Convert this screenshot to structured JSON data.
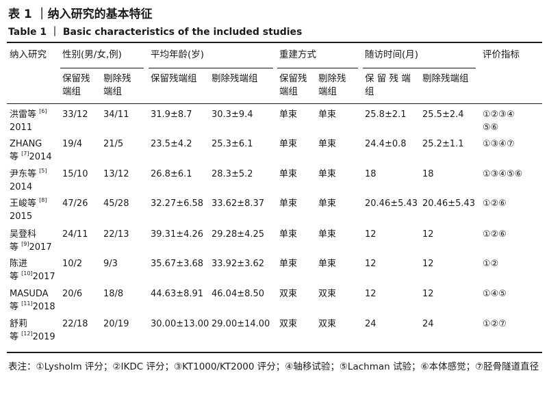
{
  "title_cn": "表 1 ｜纳入研究的基本特征",
  "title_en": "Table 1 ｜ Basic characteristics of the included studies",
  "header": {
    "study": "纳入研究",
    "sex": "性别(男/女,例)",
    "age": "平均年龄(岁)",
    "method": "重建方式",
    "followup": "随访时间(月)",
    "indicators": "评价指标",
    "sub_keep_1": "保留残",
    "sub_keep_2": "端组",
    "sub_remove_1": "剔除残",
    "sub_remove_2": "端组",
    "sub_keep_full": "保留残端组",
    "sub_remove_full": "剔除残端组",
    "sub_fu_keep_1": "保 留 残 端",
    "sub_fu_keep_2": "组",
    "sub_fu_remove_1": "剔除残端组"
  },
  "rows": [
    {
      "study_1": "洪雷等",
      "ref": "[6]",
      "study_2": "2011",
      "sex_keep": "33/12",
      "sex_remove": "34/11",
      "age_keep": "31.9±8.7",
      "age_remove": "30.3±9.4",
      "method_keep": "单束",
      "method_remove": "单束",
      "fu_keep": "25.8±2.1",
      "fu_remove": "25.5±2.4",
      "ind_1": "①②③④",
      "ind_2": "⑤⑥"
    },
    {
      "study_1": "ZHANG",
      "ref": "[7]",
      "study_2": "2014",
      "study_2_prefix": "等",
      "sex_keep": "19/4",
      "sex_remove": "21/5",
      "age_keep": "23.5±4.2",
      "age_remove": "25.3±6.1",
      "method_keep": "单束",
      "method_remove": "单束",
      "fu_keep": "24.4±0.8",
      "fu_remove": "25.2±1.1",
      "ind_1": "①③④⑦",
      "ind_2": ""
    },
    {
      "study_1": "尹东等",
      "ref": "[5]",
      "study_2": "2014",
      "sex_keep": "15/10",
      "sex_remove": "13/12",
      "age_keep": "26.8±6.1",
      "age_remove": "28.3±5.2",
      "method_keep": "单束",
      "method_remove": "单束",
      "fu_keep": "18",
      "fu_remove": "18",
      "ind_1": "①③④⑤⑥",
      "ind_2": ""
    },
    {
      "study_1": "王峻等",
      "ref": "[8]",
      "study_2": "2015",
      "sex_keep": "47/26",
      "sex_remove": "45/28",
      "age_keep": "32.27±6.58",
      "age_remove": "33.62±8.37",
      "method_keep": "单束",
      "method_remove": "单束",
      "fu_keep": "20.46±5.43",
      "fu_remove": "20.46±5.43",
      "ind_1": "①②⑥",
      "ind_2": ""
    },
    {
      "study_1": "吴登科",
      "ref": "[9]",
      "study_2": "2017",
      "study_2_prefix": "等",
      "sex_keep": "24/11",
      "sex_remove": "22/13",
      "age_keep": "39.31±4.26",
      "age_remove": "29.28±4.25",
      "method_keep": "单束",
      "method_remove": "单束",
      "fu_keep": "12",
      "fu_remove": "12",
      "ind_1": "①②⑥",
      "ind_2": ""
    },
    {
      "study_1": "陈进",
      "ref": "[10]",
      "study_2": "2017",
      "study_2_prefix": "等",
      "sex_keep": "10/2",
      "sex_remove": "9/3",
      "age_keep": "35.67±3.68",
      "age_remove": "33.92±3.62",
      "method_keep": "单束",
      "method_remove": "单束",
      "fu_keep": "12",
      "fu_remove": "12",
      "ind_1": "①②",
      "ind_2": ""
    },
    {
      "study_1": "MASUDA",
      "ref": "[11]",
      "study_2": "2018",
      "study_2_prefix": "等",
      "sex_keep": "20/6",
      "sex_remove": "18/8",
      "age_keep": "44.63±8.91",
      "age_remove": "46.04±8.50",
      "method_keep": "双束",
      "method_remove": "双束",
      "fu_keep": "12",
      "fu_remove": "12",
      "ind_1": "①④⑤",
      "ind_2": ""
    },
    {
      "study_1": "舒莉",
      "ref": "[12]",
      "study_2": "2019",
      "study_2_prefix": "等",
      "sex_keep": "22/18",
      "sex_remove": "20/19",
      "age_keep": "30.00±13.00",
      "age_remove": "29.00±14.00",
      "method_keep": "双束",
      "method_remove": "双束",
      "fu_keep": "24",
      "fu_remove": "24",
      "ind_1": "①②⑦",
      "ind_2": ""
    }
  ],
  "footnote": "表注：①Lysholm 评分；②IKDC 评分；③KT1000/KT2000 评分；④轴移试验；⑤Lachman 试验；⑥本体感觉；⑦胫骨隧道直径"
}
